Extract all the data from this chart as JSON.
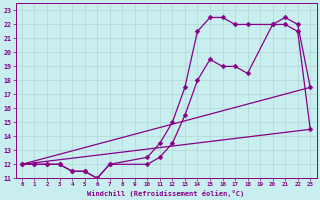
{
  "xlabel": "Windchill (Refroidissement éolien,°C)",
  "bg_color": "#c8eef0",
  "grid_color": "#b0d8d0",
  "line_color": "#880088",
  "markersize": 2.5,
  "linewidth": 0.9,
  "xlim": [
    -0.5,
    23.5
  ],
  "ylim": [
    11,
    23.5
  ],
  "xticks": [
    0,
    1,
    2,
    3,
    4,
    5,
    6,
    7,
    8,
    9,
    10,
    11,
    12,
    13,
    14,
    15,
    16,
    17,
    18,
    19,
    20,
    21,
    22,
    23
  ],
  "yticks": [
    11,
    12,
    13,
    14,
    15,
    16,
    17,
    18,
    19,
    20,
    21,
    22,
    23
  ],
  "line1_x": [
    0,
    23
  ],
  "line1_y": [
    12.0,
    17.5
  ],
  "line2_x": [
    0,
    23
  ],
  "line2_y": [
    12.0,
    14.5
  ],
  "line3_x": [
    0,
    1,
    2,
    3,
    4,
    5,
    6,
    7,
    10,
    11,
    12,
    13,
    14,
    15,
    16,
    17,
    18,
    20,
    21,
    22,
    23
  ],
  "line3_y": [
    12.0,
    12.0,
    12.0,
    12.0,
    11.5,
    11.5,
    11.0,
    12.0,
    12.0,
    12.5,
    13.5,
    15.5,
    18.0,
    19.5,
    19.0,
    19.0,
    18.5,
    22.0,
    22.5,
    22.0,
    17.5
  ],
  "line4_x": [
    0,
    1,
    2,
    3,
    4,
    5,
    6,
    7,
    10,
    11,
    12,
    13,
    14,
    15,
    16,
    17,
    18,
    20,
    21,
    22,
    23
  ],
  "line4_y": [
    12.0,
    12.0,
    12.0,
    12.0,
    11.5,
    11.5,
    11.0,
    12.0,
    12.5,
    13.5,
    15.0,
    17.5,
    21.5,
    22.5,
    22.5,
    22.0,
    22.0,
    22.0,
    22.0,
    21.5,
    14.5
  ]
}
